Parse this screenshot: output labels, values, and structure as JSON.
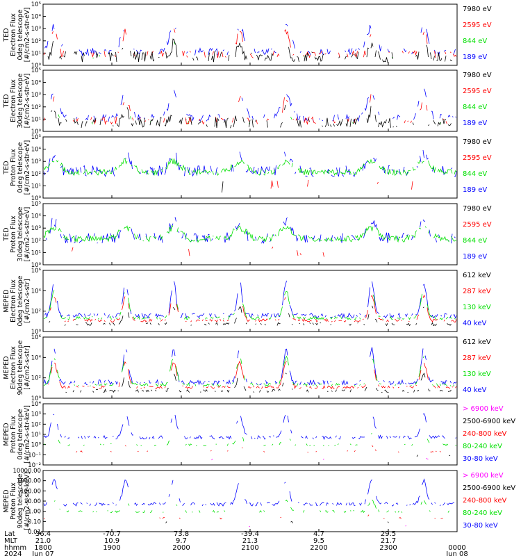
{
  "chart_data": {
    "type": "line",
    "colors": {
      "black": "#000000",
      "red": "#ff0000",
      "green": "#00e000",
      "blue": "#0000ff",
      "magenta": "#ff00ff"
    },
    "time_axis": {
      "time_labels": [
        "1800",
        "1900",
        "2000",
        "2100",
        "2200",
        "2300",
        "0000"
      ],
      "lat": [
        "36.4",
        "-70.7",
        "73.8",
        "-39.4",
        "4.7",
        "29.5"
      ],
      "mlt": [
        "21.0",
        "10.9",
        "9.7",
        "21.3",
        "9.5",
        "21.7"
      ],
      "dates": {
        "start": "Jun 07",
        "end": "Jun 08"
      },
      "year": "2024",
      "row_labels": [
        "Lat",
        "MLT",
        "hhmm",
        "2024"
      ]
    },
    "panels": [
      {
        "ylabel": [
          "TED",
          "Electron Flux",
          "0deg telescope",
          "[#/cm2-s-str-eV]"
        ],
        "yscale": "log",
        "ylim": [
          1,
          100000
        ],
        "ytick_labels": [
          "10⁰",
          "10¹",
          "10²",
          "10³",
          "10⁴",
          "10⁵"
        ],
        "series": [
          {
            "name": "7980 eV",
            "color": "#000000"
          },
          {
            "name": "2595 eV",
            "color": "#ff0000"
          },
          {
            "name": "844 eV",
            "color": "#00e000"
          },
          {
            "name": "189 eV",
            "color": "#0000ff"
          }
        ]
      },
      {
        "ylabel": [
          "TED",
          "Electron Flux",
          "30deg telescope",
          "[#/cm2-s-str-eV]"
        ],
        "yscale": "log",
        "ylim": [
          1,
          100000
        ],
        "ytick_labels": [
          "10⁰",
          "10¹",
          "10²",
          "10³",
          "10⁴",
          "10⁵"
        ],
        "series": [
          {
            "name": "7980 eV",
            "color": "#000000"
          },
          {
            "name": "2595 eV",
            "color": "#ff0000"
          },
          {
            "name": "844 eV",
            "color": "#00e000"
          },
          {
            "name": "189 eV",
            "color": "#0000ff"
          }
        ]
      },
      {
        "ylabel": [
          "TED",
          "Proton Flux",
          "0deg telescope",
          "[#/cm2-s-str-eV]"
        ],
        "yscale": "log",
        "ylim": [
          1,
          100000
        ],
        "ytick_labels": [
          "10⁰",
          "10¹",
          "10²",
          "10³",
          "10⁴",
          "10⁵"
        ],
        "series": [
          {
            "name": "7980 eV",
            "color": "#000000"
          },
          {
            "name": "2595 eV",
            "color": "#ff0000"
          },
          {
            "name": "844 eV",
            "color": "#00e000"
          },
          {
            "name": "189 eV",
            "color": "#0000ff"
          }
        ]
      },
      {
        "ylabel": [
          "TED",
          "Proton Flux",
          "30deg telescope",
          "[#/cm2-s-str-eV]"
        ],
        "yscale": "log",
        "ylim": [
          1,
          100000
        ],
        "ytick_labels": [
          "10⁰",
          "10¹",
          "10²",
          "10³",
          "10⁴",
          "10⁵"
        ],
        "series": [
          {
            "name": "7980 eV",
            "color": "#000000"
          },
          {
            "name": "2595 eV",
            "color": "#ff0000"
          },
          {
            "name": "844 eV",
            "color": "#00e000"
          },
          {
            "name": "189 eV",
            "color": "#0000ff"
          }
        ]
      },
      {
        "ylabel": [
          "MEPED",
          "Electron Flux",
          "0deg telescope",
          "[#/cm2-s-str]"
        ],
        "yscale": "log",
        "ylim": [
          1,
          1000000
        ],
        "ytick_labels": [
          "10⁰",
          "10²",
          "10⁴",
          "10⁶"
        ],
        "series": [
          {
            "name": "612 keV",
            "color": "#000000"
          },
          {
            "name": "287 keV",
            "color": "#ff0000"
          },
          {
            "name": "130 keV",
            "color": "#00e000"
          },
          {
            "name": "40 keV",
            "color": "#0000ff"
          }
        ]
      },
      {
        "ylabel": [
          "MEPED",
          "Electron Flux",
          "90deg telescope",
          "[#/cm2-s-str]"
        ],
        "yscale": "log",
        "ylim": [
          1,
          1000000
        ],
        "ytick_labels": [
          "10⁰",
          "10²",
          "10⁴",
          "10⁶"
        ],
        "series": [
          {
            "name": "612 keV",
            "color": "#000000"
          },
          {
            "name": "287 keV",
            "color": "#ff0000"
          },
          {
            "name": "130 keV",
            "color": "#00e000"
          },
          {
            "name": "40 keV",
            "color": "#0000ff"
          }
        ]
      },
      {
        "ylabel": [
          "MEPED",
          "Proton Flux",
          "0deg telescope",
          "[#/cm2-s-str-keV]"
        ],
        "yscale": "log",
        "ylim": [
          0.01,
          10000
        ],
        "ytick_labels": [
          "10⁻²",
          "10⁻¹",
          "10⁰",
          "10¹",
          "10²",
          "10³",
          "10⁴"
        ],
        "series": [
          {
            "name": "> 6900 keV",
            "color": "#ff00ff"
          },
          {
            "name": "2500-6900 keV",
            "color": "#000000"
          },
          {
            "name": "240-800 keV",
            "color": "#ff0000"
          },
          {
            "name": "80-240 keV",
            "color": "#00e000"
          },
          {
            "name": "30-80 keV",
            "color": "#0000ff"
          }
        ]
      },
      {
        "ylabel": [
          "MEPED",
          "Proton Flux",
          "90deg telescope",
          "[#/cm2-s-str-keV]"
        ],
        "yscale": "log",
        "ylim": [
          0.01,
          10000
        ],
        "ytick_labels": [
          "0.01",
          "0.10",
          "1.00",
          "10.00",
          "100.00",
          "1000.00",
          "10000.00"
        ],
        "series": [
          {
            "name": "> 6900 keV",
            "color": "#ff00ff"
          },
          {
            "name": "2500-6900 keV",
            "color": "#000000"
          },
          {
            "name": "240-800 keV",
            "color": "#ff0000"
          },
          {
            "name": "80-240 keV",
            "color": "#00e000"
          },
          {
            "name": "30-80 keV",
            "color": "#0000ff"
          }
        ]
      }
    ]
  }
}
